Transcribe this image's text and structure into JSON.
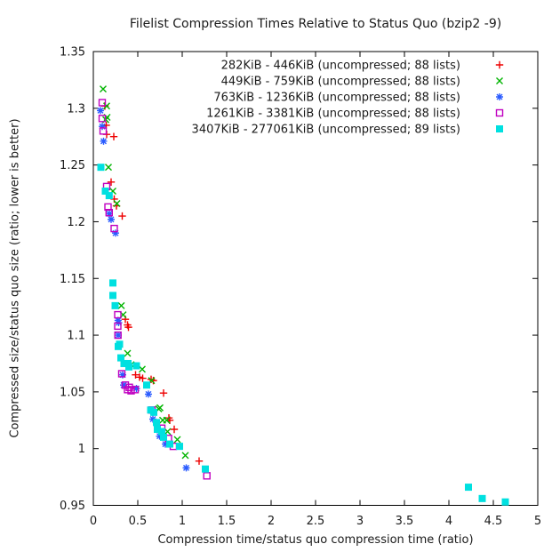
{
  "chart_data": {
    "type": "scatter",
    "title": "Filelist Compression Times Relative to Status Quo (bzip2 -9)",
    "xlabel": "Compression time/status quo compression time (ratio)",
    "ylabel": "Compressed size/status quo size (ratio; lower is better)",
    "xlim": [
      0,
      5
    ],
    "ylim": [
      0.95,
      1.35
    ],
    "xticks": [
      0,
      0.5,
      1,
      1.5,
      2,
      2.5,
      3,
      3.5,
      4,
      4.5,
      5
    ],
    "yticks": [
      0.95,
      1,
      1.05,
      1.1,
      1.15,
      1.2,
      1.25,
      1.3,
      1.35
    ],
    "grid": false,
    "legend_position": "top-right-inside",
    "axis_color": "#000000",
    "series": [
      {
        "name": "282KiB - 446KiB (uncompressed; 88 lists)",
        "marker": "plus",
        "color": "#ee0000",
        "points": [
          [
            0.13,
            1.302
          ],
          [
            0.145,
            1.285
          ],
          [
            0.15,
            1.277
          ],
          [
            0.23,
            1.275
          ],
          [
            0.2,
            1.235
          ],
          [
            0.235,
            1.22
          ],
          [
            0.26,
            1.214
          ],
          [
            0.325,
            1.205
          ],
          [
            0.36,
            1.114
          ],
          [
            0.385,
            1.109
          ],
          [
            0.395,
            1.107
          ],
          [
            0.475,
            1.065
          ],
          [
            0.52,
            1.063
          ],
          [
            0.555,
            1.062
          ],
          [
            0.65,
            1.061
          ],
          [
            0.675,
            1.06
          ],
          [
            0.79,
            1.049
          ],
          [
            0.85,
            1.027
          ],
          [
            0.86,
            1.025
          ],
          [
            0.91,
            1.017
          ],
          [
            1.19,
            0.989
          ]
        ]
      },
      {
        "name": "449KiB - 759KiB (uncompressed; 88 lists)",
        "marker": "cross",
        "color": "#00b400",
        "points": [
          [
            0.11,
            1.317
          ],
          [
            0.15,
            1.302
          ],
          [
            0.14,
            1.29
          ],
          [
            0.155,
            1.292
          ],
          [
            0.17,
            1.248
          ],
          [
            0.22,
            1.227
          ],
          [
            0.265,
            1.216
          ],
          [
            0.315,
            1.126
          ],
          [
            0.335,
            1.118
          ],
          [
            0.385,
            1.084
          ],
          [
            0.425,
            1.074
          ],
          [
            0.55,
            1.07
          ],
          [
            0.655,
            1.06
          ],
          [
            0.735,
            1.035
          ],
          [
            0.75,
            1.036
          ],
          [
            0.78,
            1.025
          ],
          [
            0.825,
            1.025
          ],
          [
            0.835,
            1.015
          ],
          [
            0.945,
            1.008
          ],
          [
            1.035,
            0.994
          ]
        ]
      },
      {
        "name": "763KiB - 1236KiB (uncompressed; 88 lists)",
        "marker": "asterisk",
        "color": "#2b5cff",
        "points": [
          [
            0.08,
            1.298
          ],
          [
            0.1,
            1.284
          ],
          [
            0.115,
            1.271
          ],
          [
            0.18,
            1.207
          ],
          [
            0.2,
            1.202
          ],
          [
            0.25,
            1.19
          ],
          [
            0.278,
            1.113
          ],
          [
            0.285,
            1.111
          ],
          [
            0.28,
            1.1
          ],
          [
            0.33,
            1.065
          ],
          [
            0.34,
            1.056
          ],
          [
            0.485,
            1.053
          ],
          [
            0.62,
            1.048
          ],
          [
            0.67,
            1.026
          ],
          [
            0.745,
            1.011
          ],
          [
            0.81,
            1.004
          ],
          [
            1.045,
            0.983
          ]
        ]
      },
      {
        "name": "1261KiB - 3381KiB (uncompressed; 88 lists)",
        "marker": "square-open",
        "color": "#c000c0",
        "points": [
          [
            0.1,
            1.305
          ],
          [
            0.1,
            1.291
          ],
          [
            0.11,
            1.28
          ],
          [
            0.15,
            1.231
          ],
          [
            0.165,
            1.213
          ],
          [
            0.178,
            1.208
          ],
          [
            0.235,
            1.194
          ],
          [
            0.275,
            1.118
          ],
          [
            0.275,
            1.108
          ],
          [
            0.277,
            1.1
          ],
          [
            0.32,
            1.066
          ],
          [
            0.36,
            1.056
          ],
          [
            0.385,
            1.052
          ],
          [
            0.405,
            1.054
          ],
          [
            0.425,
            1.051
          ],
          [
            0.47,
            1.052
          ],
          [
            0.66,
            1.034
          ],
          [
            0.77,
            1.018
          ],
          [
            0.845,
            1.009
          ],
          [
            0.9,
            1.002
          ],
          [
            1.277,
            0.976
          ]
        ]
      },
      {
        "name": "3407KiB - 277061KiB (uncompressed; 89 lists)",
        "marker": "square-filled",
        "color": "#00e0e0",
        "points": [
          [
            0.085,
            1.248
          ],
          [
            0.135,
            1.227
          ],
          [
            0.178,
            1.223
          ],
          [
            0.22,
            1.146
          ],
          [
            0.22,
            1.135
          ],
          [
            0.245,
            1.126
          ],
          [
            0.28,
            1.09
          ],
          [
            0.295,
            1.092
          ],
          [
            0.31,
            1.08
          ],
          [
            0.345,
            1.075
          ],
          [
            0.39,
            1.075
          ],
          [
            0.4,
            1.072
          ],
          [
            0.485,
            1.073
          ],
          [
            0.6,
            1.056
          ],
          [
            0.645,
            1.034
          ],
          [
            0.68,
            1.032
          ],
          [
            0.71,
            1.023
          ],
          [
            0.72,
            1.017
          ],
          [
            0.77,
            1.015
          ],
          [
            0.79,
            1.01
          ],
          [
            0.86,
            1.004
          ],
          [
            0.97,
            1.002
          ],
          [
            1.26,
            0.982
          ],
          [
            4.22,
            0.966
          ],
          [
            4.375,
            0.956
          ],
          [
            4.635,
            0.953
          ]
        ]
      }
    ]
  }
}
